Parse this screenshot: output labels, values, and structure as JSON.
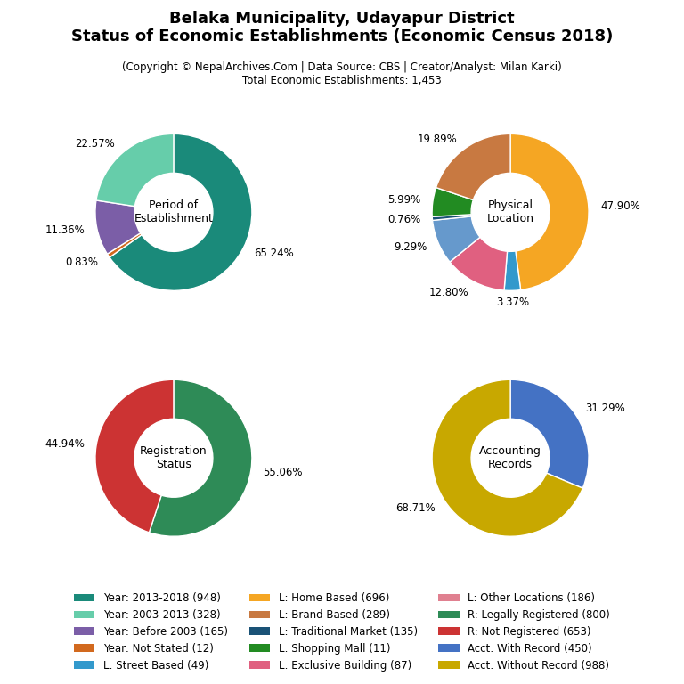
{
  "title": "Belaka Municipality, Udayapur District\nStatus of Economic Establishments (Economic Census 2018)",
  "subtitle": "(Copyright © NepalArchives.Com | Data Source: CBS | Creator/Analyst: Milan Karki)\nTotal Economic Establishments: 1,453",
  "legend": "lower center",
  "legend_entries": [
    {
      "name": "Year: 2013-2018 (948)",
      "color": "#1a8a7a"
    },
    {
      "name": "Year: 2003-2013 (328)",
      "color": "#66cdaa"
    },
    {
      "name": "Year: Before 2003 (165)",
      "color": "#7b5ea7"
    },
    {
      "name": "Year: Not Stated (12)",
      "color": "#d2691e"
    },
    {
      "name": "L: Street Based (49)",
      "color": "#3399cc"
    },
    {
      "name": "L: Home Based (696)",
      "color": "#f5a623"
    },
    {
      "name": "L: Brand Based (289)",
      "color": "#c87941"
    },
    {
      "name": "L: Traditional Market (135)",
      "color": "#1a5276"
    },
    {
      "name": "L: Shopping Mall (11)",
      "color": "#228b22"
    },
    {
      "name": "L: Exclusive Building (87)",
      "color": "#e06080"
    },
    {
      "name": "L: Other Locations (186)",
      "color": "#e08090"
    },
    {
      "name": "R: Legally Registered (800)",
      "color": "#2e8b57"
    },
    {
      "name": "R: Not Registered (653)",
      "color": "#cc3333"
    },
    {
      "name": "Acct: With Record (450)",
      "color": "#4472c4"
    },
    {
      "name": "Acct: Without Record (988)",
      "color": "#c8a800"
    }
  ],
  "chart_data": [
    {
      "type": "pie",
      "title": "Period of\nEstablishment",
      "values": [
        65.24,
        0.83,
        11.36,
        22.57
      ],
      "value_labels": [
        "65.24%",
        "0.83%",
        "11.36%",
        "22.57%"
      ],
      "colors": [
        "#1a8a7a",
        "#d2691e",
        "#7b5ea7",
        "#66cdaa"
      ],
      "data_labels": true
    },
    {
      "type": "pie",
      "title": "Physical\nLocation",
      "values": [
        47.9,
        3.37,
        12.8,
        9.29,
        0.76,
        5.99,
        19.89
      ],
      "value_labels": [
        "47.90%",
        "3.37%",
        "12.80%",
        "9.29%",
        "0.76%",
        "5.99%",
        "19.89%"
      ],
      "colors": [
        "#f5a623",
        "#3399cc",
        "#e06080",
        "#6699cc",
        "#1a5276",
        "#228b22",
        "#c87941"
      ],
      "data_labels": true
    },
    {
      "type": "pie",
      "title": "Registration\nStatus",
      "values": [
        55.06,
        44.94
      ],
      "value_labels": [
        "55.06%",
        "44.94%"
      ],
      "colors": [
        "#2e8b57",
        "#cc3333"
      ],
      "data_labels": true
    },
    {
      "type": "pie",
      "title": "Accounting\nRecords",
      "values": [
        31.29,
        68.71
      ],
      "value_labels": [
        "31.29%",
        "68.71%"
      ],
      "colors": [
        "#4472c4",
        "#c8a800"
      ],
      "data_labels": true
    }
  ]
}
